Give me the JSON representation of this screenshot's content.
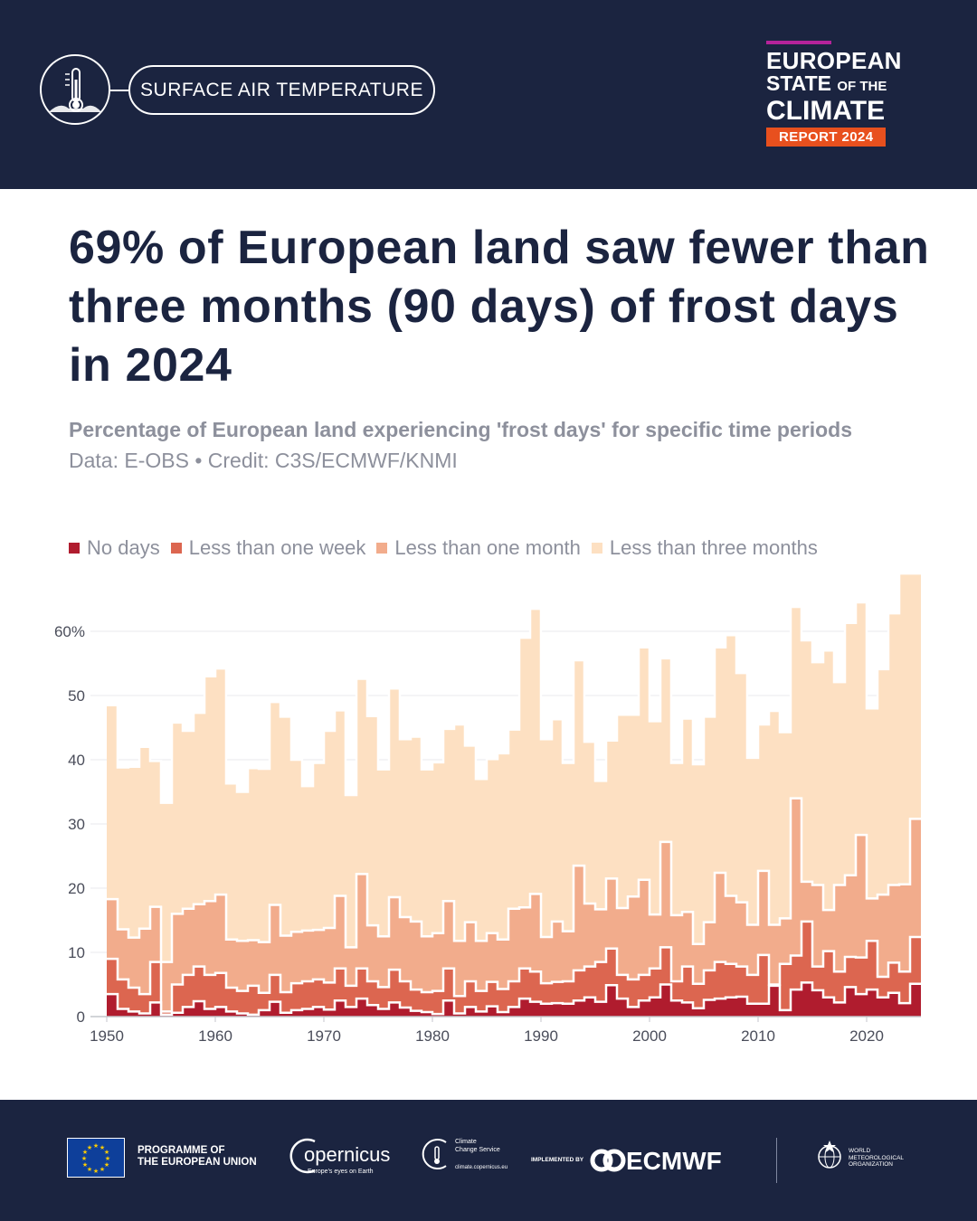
{
  "header": {
    "category": "SURFACE AIR TEMPERATURE",
    "report_line1": "EUROPEAN",
    "report_line2": "STATE",
    "report_line2b": "OF THE",
    "report_line3": "CLIMATE",
    "report_tag": "REPORT 2024"
  },
  "headline": "69% of European land saw fewer than three months (90 days) of frost days in 2024",
  "subtitle": "Percentage of European land experiencing 'frost days' for specific time periods",
  "credit": "Data: E-OBS • Credit: C3S/ECMWF/KNMI",
  "colors": {
    "navy": "#1b2440",
    "no_days": "#b01c2e",
    "week": "#dc6650",
    "month": "#f2ac8c",
    "three_months": "#fde0c2",
    "accent_orange": "#e8501e",
    "accent_magenta": "#b5239a"
  },
  "chart_data": {
    "type": "area",
    "stacking": "cumulative step",
    "x": [
      1950,
      1951,
      1952,
      1953,
      1954,
      1955,
      1956,
      1957,
      1958,
      1959,
      1960,
      1961,
      1962,
      1963,
      1964,
      1965,
      1966,
      1967,
      1968,
      1969,
      1970,
      1971,
      1972,
      1973,
      1974,
      1975,
      1976,
      1977,
      1978,
      1979,
      1980,
      1981,
      1982,
      1983,
      1984,
      1985,
      1986,
      1987,
      1988,
      1989,
      1990,
      1991,
      1992,
      1993,
      1994,
      1995,
      1996,
      1997,
      1998,
      1999,
      2000,
      2001,
      2002,
      2003,
      2004,
      2005,
      2006,
      2007,
      2008,
      2009,
      2010,
      2011,
      2012,
      2013,
      2014,
      2015,
      2016,
      2017,
      2018,
      2019,
      2020,
      2021,
      2022,
      2023,
      2024
    ],
    "series": [
      {
        "name": "No days",
        "values": [
          3.5,
          1.2,
          0.8,
          0.5,
          2.2,
          0.3,
          0.6,
          1.5,
          2.4,
          1.2,
          1.5,
          0.8,
          0.5,
          0.3,
          1.0,
          2.3,
          0.6,
          1.0,
          1.2,
          1.5,
          1.1,
          2.5,
          1.5,
          2.8,
          1.8,
          1.2,
          2.2,
          1.4,
          0.9,
          0.7,
          0.4,
          2.5,
          0.5,
          1.5,
          0.8,
          1.6,
          0.7,
          1.5,
          2.8,
          2.3,
          2.0,
          2.1,
          2.0,
          2.5,
          3.0,
          2.3,
          4.9,
          2.8,
          1.5,
          2.5,
          3.0,
          5.0,
          2.5,
          2.2,
          1.3,
          2.6,
          2.8,
          3.0,
          3.1,
          2.0,
          2.0,
          4.8,
          1.0,
          4.2,
          5.3,
          4.1,
          3.0,
          2.2,
          4.6,
          3.5,
          4.2,
          3.0,
          3.7,
          2.1,
          5.1
        ]
      },
      {
        "name": "Less than one week",
        "values": [
          9.0,
          5.8,
          4.5,
          3.5,
          8.5,
          0.8,
          5.0,
          6.5,
          7.8,
          6.5,
          6.8,
          4.5,
          4.0,
          4.8,
          3.7,
          6.5,
          3.8,
          5.2,
          5.5,
          5.8,
          5.3,
          7.5,
          4.8,
          7.5,
          5.5,
          4.6,
          7.3,
          5.5,
          4.2,
          3.8,
          4.0,
          7.5,
          3.2,
          5.5,
          4.0,
          5.4,
          4.3,
          5.5,
          7.5,
          7.0,
          5.2,
          5.4,
          5.5,
          7.2,
          7.8,
          8.5,
          10.6,
          6.5,
          5.8,
          6.5,
          7.5,
          10.8,
          5.5,
          7.8,
          5.1,
          7.2,
          8.5,
          8.2,
          7.8,
          6.5,
          9.6,
          5.0,
          8.2,
          9.5,
          14.8,
          7.8,
          10.2,
          7.0,
          9.3,
          9.2,
          11.8,
          6.2,
          8.4,
          7.0,
          12.4
        ]
      },
      {
        "name": "Less than one month",
        "values": [
          18.3,
          13.6,
          12.3,
          13.7,
          17.1,
          8.5,
          16.0,
          16.8,
          17.5,
          18.0,
          19.0,
          12.0,
          11.8,
          11.9,
          11.6,
          17.4,
          12.6,
          13.2,
          13.4,
          13.5,
          13.8,
          18.8,
          10.8,
          22.2,
          14.2,
          12.5,
          18.6,
          15.5,
          14.8,
          12.5,
          13.0,
          18.0,
          11.8,
          14.7,
          11.8,
          13.0,
          12.0,
          16.8,
          17.0,
          19.1,
          12.4,
          14.8,
          13.3,
          23.5,
          17.6,
          16.7,
          21.5,
          16.9,
          18.7,
          21.3,
          15.9,
          27.2,
          15.8,
          16.3,
          11.3,
          14.7,
          22.4,
          18.8,
          17.8,
          14.3,
          22.7,
          14.3,
          15.3,
          34.0,
          21.0,
          20.5,
          16.6,
          20.5,
          22.0,
          28.3,
          18.4,
          19.0,
          20.5,
          20.6,
          30.8
        ]
      },
      {
        "name": "Less than three months",
        "values": [
          48.5,
          38.8,
          38.9,
          42.0,
          39.8,
          33.3,
          45.8,
          44.5,
          47.3,
          53.0,
          54.2,
          36.3,
          35.0,
          38.7,
          38.6,
          49.0,
          46.7,
          40.0,
          35.9,
          39.5,
          44.5,
          47.7,
          34.5,
          52.6,
          46.8,
          38.5,
          51.1,
          43.2,
          43.6,
          38.5,
          39.6,
          44.8,
          45.5,
          42.2,
          37.0,
          40.1,
          41.0,
          44.7,
          59.0,
          63.5,
          43.2,
          46.3,
          39.5,
          55.5,
          42.8,
          36.7,
          43.0,
          47.0,
          47.0,
          57.5,
          46.0,
          55.8,
          39.5,
          46.4,
          39.3,
          46.7,
          57.5,
          59.4,
          53.5,
          40.3,
          45.5,
          47.6,
          44.3,
          63.8,
          58.6,
          55.2,
          57.0,
          52.1,
          61.3,
          64.5,
          48.0,
          54.1,
          62.8,
          69.0,
          69.0
        ]
      }
    ],
    "xticks": [
      1950,
      1960,
      1970,
      1980,
      1990,
      2000,
      2010,
      2020
    ],
    "yticks": [
      0,
      10,
      20,
      30,
      40,
      50,
      60
    ],
    "ytick_labels": [
      "0",
      "10",
      "20",
      "30",
      "40",
      "50",
      "60%"
    ],
    "ylim": [
      0,
      70
    ],
    "grid": "horizontal",
    "legend_position": "top-left"
  },
  "footer": {
    "eu_line1": "PROGRAMME OF",
    "eu_line2": "THE EUROPEAN UNION",
    "copernicus": "opernicus",
    "copernicus_tagline": "Europe's eyes on Earth",
    "c3s_line1": "Climate",
    "c3s_line2": "Change Service",
    "c3s_url": "climate.copernicus.eu",
    "implemented_by": "IMPLEMENTED BY",
    "ecmwf": "ECMWF",
    "wmo_line1": "WORLD",
    "wmo_line2": "METEOROLOGICAL",
    "wmo_line3": "ORGANIZATION"
  }
}
